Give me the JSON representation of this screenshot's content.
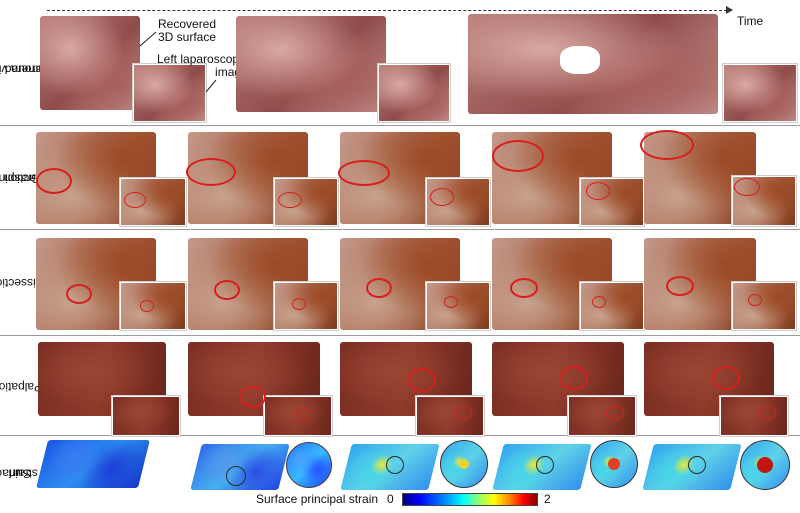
{
  "rows": [
    {
      "label_line1": "Camera viewing",
      "label_line2": "around"
    },
    {
      "label_line1": "Grasping &",
      "label_line2": "traction"
    },
    {
      "label_line1": "Dissection",
      "label_line2": ""
    },
    {
      "label_line1": "Palpation",
      "label_line2": ""
    },
    {
      "label_line1": "Surface",
      "label_line2": "strain"
    }
  ],
  "annotations": {
    "time": "Time",
    "recovered_line1": "Recovered",
    "recovered_line2": "3D surface",
    "left_image_line1": "Left laparoscopic",
    "left_image_line2": "image"
  },
  "colorbar": {
    "label": "Surface principal strain",
    "min_label": "0",
    "max_label": "2",
    "colors": [
      "#00007f",
      "#0000ff",
      "#00ffff",
      "#ffff00",
      "#ff0000",
      "#7f0000"
    ]
  }
}
